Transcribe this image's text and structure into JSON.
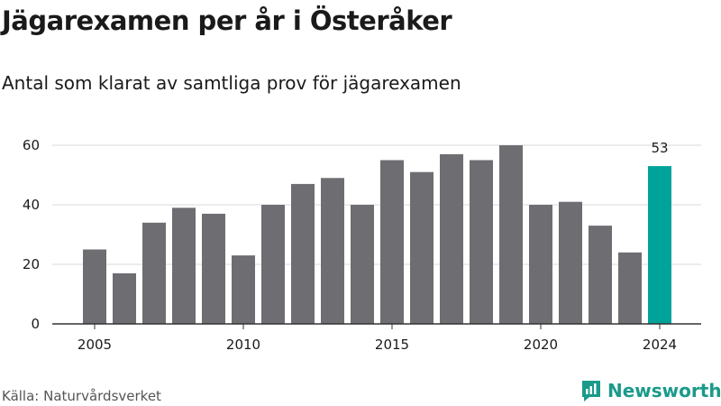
{
  "header": {
    "title": "Jägarexamen per år i Österåker",
    "subtitle": "Antal som klarat av samtliga prov för jägarexamen"
  },
  "footer": {
    "source": "Källa: Naturvårdsverket",
    "brand": "Newsworthy"
  },
  "colors": {
    "bar": "#6e6d72",
    "highlight": "#00a39a",
    "grid": "#d9d9d9",
    "brand": "#1a9a8a"
  },
  "chart_data": {
    "type": "bar",
    "title": "Jägarexamen per år i Österåker",
    "subtitle": "Antal som klarat av samtliga prov för jägarexamen",
    "x": [
      2005,
      2006,
      2007,
      2008,
      2009,
      2010,
      2011,
      2012,
      2013,
      2014,
      2015,
      2016,
      2017,
      2018,
      2019,
      2020,
      2021,
      2022,
      2023,
      2024
    ],
    "values": [
      25,
      17,
      34,
      39,
      37,
      23,
      40,
      47,
      49,
      40,
      55,
      51,
      57,
      55,
      60,
      40,
      41,
      33,
      24,
      53
    ],
    "x_ticks": [
      "2005",
      "2010",
      "2015",
      "2020",
      "2024"
    ],
    "y_ticks": [
      "0",
      "20",
      "40",
      "60"
    ],
    "ylim": [
      0,
      60
    ],
    "highlight": {
      "x": 2024,
      "label": "53"
    },
    "grid": true,
    "legend": "none"
  }
}
